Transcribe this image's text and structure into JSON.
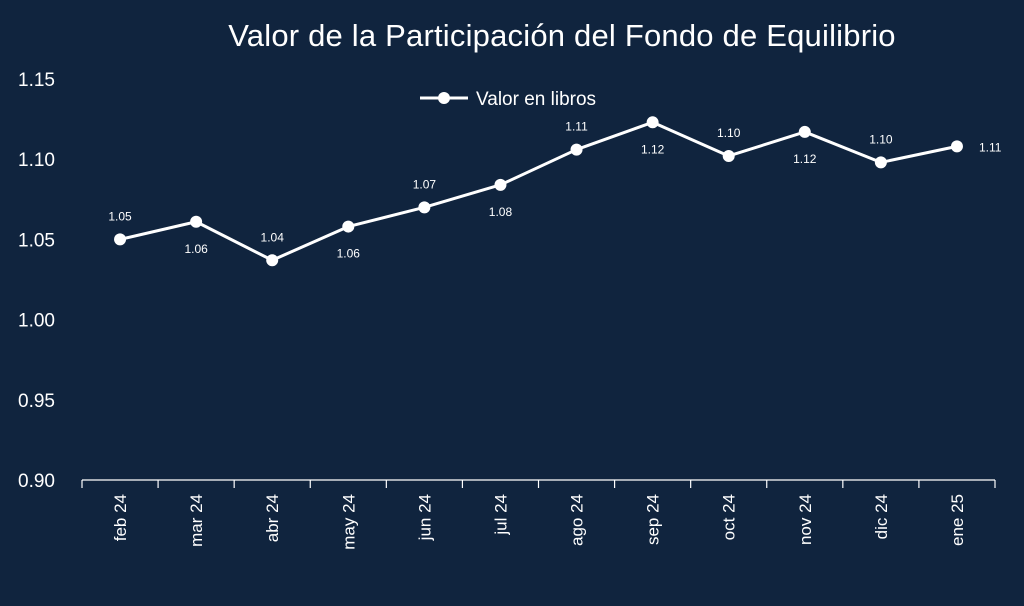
{
  "chart_data": {
    "type": "line",
    "title": "Valor de la Participación del Fondo de Equilibrio",
    "categories": [
      "feb 24",
      "mar 24",
      "abr 24",
      "may 24",
      "jun 24",
      "jul 24",
      "ago 24",
      "sep 24",
      "oct 24",
      "nov 24",
      "dic 24",
      "ene 25"
    ],
    "series": [
      {
        "name": "Valor en libros",
        "values": [
          1.05,
          1.061,
          1.037,
          1.058,
          1.07,
          1.084,
          1.106,
          1.123,
          1.102,
          1.117,
          1.098,
          1.108
        ],
        "labels": [
          "1.05",
          "1.06",
          "1.04",
          "1.06",
          "1.07",
          "1.08",
          "1.11",
          "1.12",
          "1.10",
          "1.12",
          "1.10",
          "1.11"
        ]
      }
    ],
    "y_ticks": [
      "0.90",
      "0.95",
      "1.00",
      "1.05",
      "1.10",
      "1.15"
    ],
    "ylim": [
      0.9,
      1.15
    ],
    "legend_position": "top-center",
    "grid": false,
    "colors": {
      "background": "#10243e",
      "line": "#ffffff",
      "text": "#ffffff"
    }
  }
}
